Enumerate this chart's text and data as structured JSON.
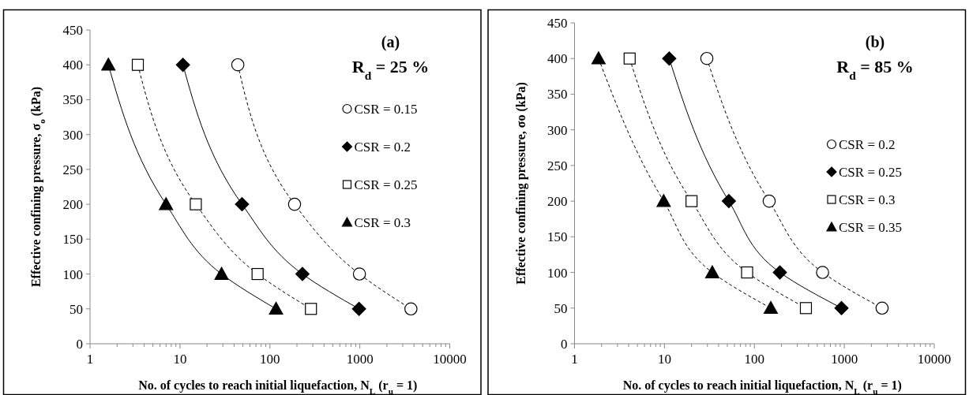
{
  "chart_data": [
    {
      "type": "line",
      "title": "(a)",
      "subtitle": "R$_{d}$ = 25 %",
      "xlabel": "No. of cycles to reach initial liquefaction, N$_{L}$ (r$_{u}$ = 1)",
      "ylabel": "Effective confining pressure, σ$_{o}$ (kPa)",
      "log": "x",
      "xlim": [
        1,
        10000
      ],
      "ylim": [
        0,
        450
      ],
      "xticks": [
        1,
        {
          "value": 2,
          "label": null
        },
        {
          "value": 3,
          "label": null
        },
        {
          "value": 4,
          "label": null
        },
        {
          "value": 5,
          "label": null
        },
        {
          "value": 6,
          "label": null
        },
        {
          "value": 7,
          "label": null
        },
        {
          "value": 8,
          "label": null
        },
        {
          "value": 9,
          "label": null
        },
        10,
        {
          "value": 20,
          "label": null
        },
        {
          "value": 30,
          "label": null
        },
        {
          "value": 40,
          "label": null
        },
        {
          "value": 50,
          "label": null
        },
        {
          "value": 60,
          "label": null
        },
        {
          "value": 70,
          "label": null
        },
        {
          "value": 80,
          "label": null
        },
        {
          "value": 90,
          "label": null
        },
        100,
        {
          "value": 200,
          "label": null
        },
        {
          "value": 300,
          "label": null
        },
        {
          "value": 400,
          "label": null
        },
        {
          "value": 500,
          "label": null
        },
        {
          "value": 600,
          "label": null
        },
        {
          "value": 700,
          "label": null
        },
        {
          "value": 800,
          "label": null
        },
        {
          "value": 900,
          "label": null
        },
        1000,
        {
          "value": 2000,
          "label": null
        },
        {
          "value": 3000,
          "label": null
        },
        {
          "value": 4000,
          "label": null
        },
        {
          "value": 5000,
          "label": null
        },
        {
          "value": 6000,
          "label": null
        },
        {
          "value": 7000,
          "label": null
        },
        {
          "value": 8000,
          "label": null
        },
        {
          "value": 9000,
          "label": null
        },
        10000
      ],
      "yticks": [
        0,
        50,
        100,
        150,
        200,
        250,
        300,
        350,
        400,
        450
      ],
      "grid": false,
      "legend": "right",
      "series": [
        {
          "name": "CSR = 0.15",
          "color": "#000000",
          "marker": "circle",
          "line_style": "dashed",
          "x": [
            44,
            188,
            990,
            3700
          ],
          "values": [
            400,
            200,
            100,
            50
          ]
        },
        {
          "name": "CSR = 0.2",
          "color": "#000000",
          "marker": "diamond",
          "line_style": "solid",
          "x": [
            10.8,
            49,
            230,
            980
          ],
          "values": [
            400,
            200,
            100,
            50
          ]
        },
        {
          "name": "CSR = 0.25",
          "color": "#000000",
          "marker": "square",
          "line_style": "dashed",
          "x": [
            3.4,
            15,
            73,
            286
          ],
          "values": [
            400,
            200,
            100,
            50
          ]
        },
        {
          "name": "CSR = 0.3",
          "color": "#000000",
          "marker": "triangle",
          "line_style": "solid",
          "x": [
            1.6,
            7,
            29,
            117
          ],
          "values": [
            400,
            200,
            100,
            50
          ]
        }
      ]
    },
    {
      "type": "line",
      "title": "(b)",
      "subtitle": "R$_{d}$ = 85 %",
      "xlabel": "No. of cycles to reach initial liquefaction, N$_{L}$ (r$_{u}$ = 1)",
      "ylabel": "Effective confining pressure, σo (kPa)",
      "log": "x",
      "xlim": [
        1,
        10000
      ],
      "ylim": [
        0,
        450
      ],
      "xticks": [
        1,
        {
          "value": 2,
          "label": null
        },
        {
          "value": 3,
          "label": null
        },
        {
          "value": 4,
          "label": null
        },
        {
          "value": 5,
          "label": null
        },
        {
          "value": 6,
          "label": null
        },
        {
          "value": 7,
          "label": null
        },
        {
          "value": 8,
          "label": null
        },
        {
          "value": 9,
          "label": null
        },
        10,
        {
          "value": 20,
          "label": null
        },
        {
          "value": 30,
          "label": null
        },
        {
          "value": 40,
          "label": null
        },
        {
          "value": 50,
          "label": null
        },
        {
          "value": 60,
          "label": null
        },
        {
          "value": 70,
          "label": null
        },
        {
          "value": 80,
          "label": null
        },
        {
          "value": 90,
          "label": null
        },
        100,
        {
          "value": 200,
          "label": null
        },
        {
          "value": 300,
          "label": null
        },
        {
          "value": 400,
          "label": null
        },
        {
          "value": 500,
          "label": null
        },
        {
          "value": 600,
          "label": null
        },
        {
          "value": 700,
          "label": null
        },
        {
          "value": 800,
          "label": null
        },
        {
          "value": 900,
          "label": null
        },
        1000,
        {
          "value": 2000,
          "label": null
        },
        {
          "value": 3000,
          "label": null
        },
        {
          "value": 4000,
          "label": null
        },
        {
          "value": 5000,
          "label": null
        },
        {
          "value": 6000,
          "label": null
        },
        {
          "value": 7000,
          "label": null
        },
        {
          "value": 8000,
          "label": null
        },
        {
          "value": 9000,
          "label": null
        },
        10000
      ],
      "yticks": [
        0,
        50,
        100,
        150,
        200,
        250,
        300,
        350,
        400,
        450
      ],
      "grid": false,
      "legend": "right",
      "series": [
        {
          "name": "CSR = 0.2",
          "color": "#000000",
          "marker": "circle",
          "line_style": "dashed",
          "x": [
            29.6,
            146,
            573,
            2630
          ],
          "values": [
            400,
            200,
            100,
            50
          ]
        },
        {
          "name": "CSR = 0.25",
          "color": "#000000",
          "marker": "diamond",
          "line_style": "solid",
          "x": [
            11.3,
            52,
            192,
            930
          ],
          "values": [
            400,
            200,
            100,
            50
          ]
        },
        {
          "name": "CSR = 0.3",
          "color": "#000000",
          "marker": "square",
          "line_style": "dashed",
          "x": [
            4.1,
            20,
            83,
            374
          ],
          "values": [
            400,
            200,
            100,
            50
          ]
        },
        {
          "name": "CSR = 0.35",
          "color": "#000000",
          "marker": "triangle",
          "line_style": "dashed",
          "x": [
            1.85,
            9.8,
            34,
            152
          ],
          "values": [
            400,
            200,
            100,
            50
          ]
        }
      ]
    }
  ]
}
